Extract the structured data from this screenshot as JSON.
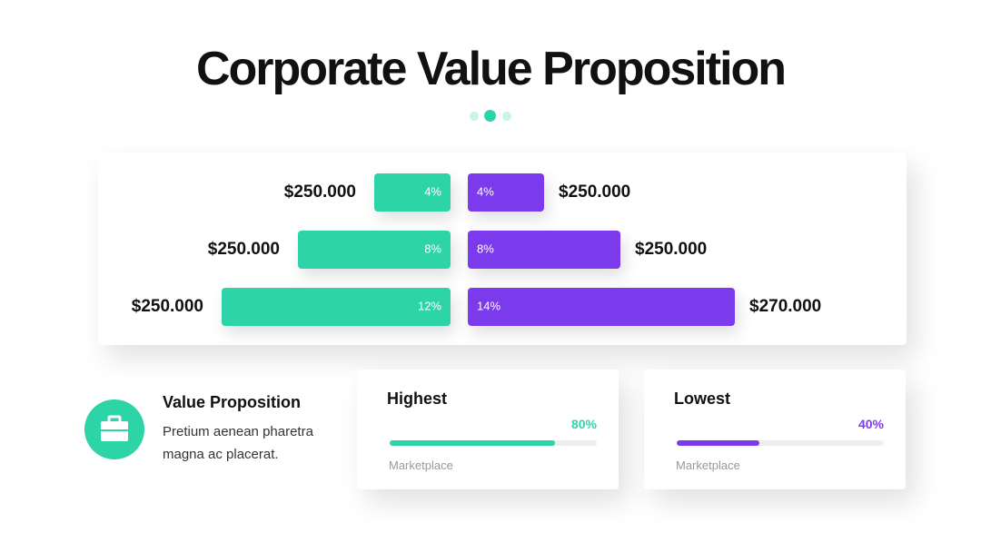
{
  "title": "Corporate Value Proposition",
  "chart_data": {
    "type": "butterfly",
    "series": [
      {
        "color": "#2dd4a8",
        "values": [
          4,
          8,
          12
        ],
        "value_labels": [
          "4%",
          "8%",
          "12%"
        ],
        "amount_labels": [
          "$250.000",
          "$250.000",
          "$250.000"
        ]
      },
      {
        "color": "#7c3aed",
        "values": [
          4,
          8,
          14
        ],
        "value_labels": [
          "4%",
          "8%",
          "14%"
        ],
        "amount_labels": [
          "$250.000",
          "$250.000",
          "$270.000"
        ]
      }
    ]
  },
  "info": {
    "title": "Value Proposition",
    "lines": [
      "Pretium aenean pharetra",
      "magna ac placerat."
    ]
  },
  "cards": [
    {
      "title": "Highest",
      "value": 80,
      "value_label": "80%",
      "label": "Marketplace",
      "color": "#2dd4a8"
    },
    {
      "title": "Lowest",
      "value": 40,
      "value_label": "40%",
      "label": "Marketplace",
      "color": "#7c3aed"
    }
  ]
}
